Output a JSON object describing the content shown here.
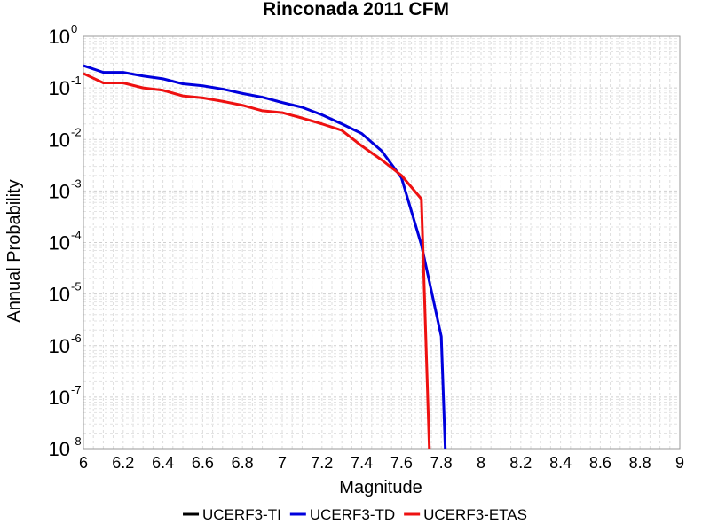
{
  "chart_data": {
    "type": "line",
    "title": "Rinconada 2011 CFM",
    "xlabel": "Magnitude",
    "ylabel": "Annual Probability",
    "xlim": [
      6,
      9
    ],
    "ylim": [
      1e-08,
      1
    ],
    "yscale": "log",
    "grid": true,
    "legend_position": "bottom",
    "x_ticks": [
      "6",
      "6.2",
      "6.4",
      "6.6",
      "6.8",
      "7",
      "7.2",
      "7.4",
      "7.6",
      "7.8",
      "8",
      "8.2",
      "8.4",
      "8.6",
      "8.8",
      "9"
    ],
    "y_ticks": [
      {
        "base": "10",
        "exp": "0"
      },
      {
        "base": "10",
        "exp": "-1"
      },
      {
        "base": "10",
        "exp": "-2"
      },
      {
        "base": "10",
        "exp": "-3"
      },
      {
        "base": "10",
        "exp": "-4"
      },
      {
        "base": "10",
        "exp": "-5"
      },
      {
        "base": "10",
        "exp": "-6"
      },
      {
        "base": "10",
        "exp": "-7"
      },
      {
        "base": "10",
        "exp": "-8"
      }
    ],
    "series": [
      {
        "name": "UCERF3-TI",
        "color": "#000000",
        "points": []
      },
      {
        "name": "UCERF3-TD",
        "color": "#0000dd",
        "points": [
          [
            6.0,
            0.27
          ],
          [
            6.1,
            0.2
          ],
          [
            6.2,
            0.2
          ],
          [
            6.3,
            0.17
          ],
          [
            6.4,
            0.15
          ],
          [
            6.5,
            0.12
          ],
          [
            6.6,
            0.11
          ],
          [
            6.7,
            0.095
          ],
          [
            6.8,
            0.078
          ],
          [
            6.9,
            0.066
          ],
          [
            7.0,
            0.052
          ],
          [
            7.1,
            0.042
          ],
          [
            7.2,
            0.03
          ],
          [
            7.3,
            0.02
          ],
          [
            7.4,
            0.013
          ],
          [
            7.5,
            0.006
          ],
          [
            7.6,
            0.0018
          ],
          [
            7.7,
            9e-05
          ],
          [
            7.8,
            1.5e-06
          ],
          [
            7.82,
            1e-08
          ]
        ]
      },
      {
        "name": "UCERF3-ETAS",
        "color": "#ee1111",
        "points": [
          [
            6.0,
            0.19
          ],
          [
            6.1,
            0.125
          ],
          [
            6.2,
            0.125
          ],
          [
            6.3,
            0.1
          ],
          [
            6.4,
            0.09
          ],
          [
            6.5,
            0.07
          ],
          [
            6.6,
            0.064
          ],
          [
            6.7,
            0.055
          ],
          [
            6.8,
            0.046
          ],
          [
            6.9,
            0.036
          ],
          [
            7.0,
            0.033
          ],
          [
            7.1,
            0.026
          ],
          [
            7.2,
            0.02
          ],
          [
            7.3,
            0.015
          ],
          [
            7.4,
            0.0075
          ],
          [
            7.5,
            0.004
          ],
          [
            7.6,
            0.002
          ],
          [
            7.7,
            0.0007
          ],
          [
            7.74,
            1e-08
          ]
        ]
      }
    ]
  }
}
